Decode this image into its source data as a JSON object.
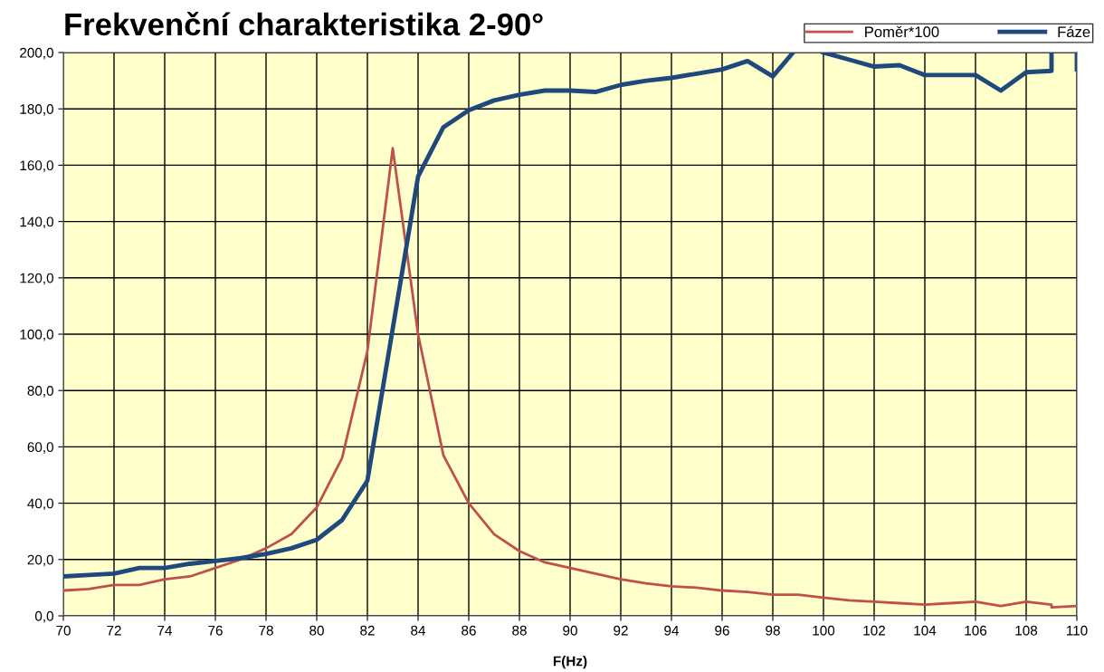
{
  "chart_data": {
    "type": "line",
    "title": "Frekvenční charakteristika 2-90°",
    "xlabel": "F(Hz)",
    "series": [
      {
        "name": "Poměr*100",
        "color": "#c0504d",
        "x": [
          70,
          71,
          72,
          73,
          74,
          75,
          76,
          77,
          78,
          79,
          80,
          81,
          82,
          83,
          84,
          85,
          86,
          87,
          88,
          89,
          90,
          91,
          92,
          93,
          94,
          95,
          96,
          97,
          98,
          99,
          100,
          101,
          102,
          103,
          104,
          105,
          106,
          107,
          108,
          109,
          109,
          110
        ],
        "values": [
          9,
          9.5,
          11,
          11,
          13,
          14,
          17,
          20,
          24,
          29,
          38.5,
          56,
          94,
          166,
          100,
          57,
          40,
          29,
          23,
          19,
          17,
          15,
          13,
          11.5,
          10.5,
          10,
          9,
          8.5,
          7.5,
          7.5,
          6.5,
          5.5,
          5,
          4.5,
          4,
          4.5,
          5,
          3.5,
          5,
          4,
          3,
          3.5
        ]
      },
      {
        "name": "Fáze",
        "color": "#1f497d",
        "x": [
          70,
          71,
          72,
          73,
          74,
          75,
          76,
          77,
          78,
          79,
          80,
          81,
          82,
          83,
          84,
          85,
          86,
          87,
          88,
          89,
          90,
          91,
          92,
          93,
          94,
          95,
          96,
          97,
          98,
          98.8,
          99,
          100,
          101,
          102,
          103,
          104,
          105,
          106,
          107,
          108,
          109,
          109,
          109.5,
          110,
          110
        ],
        "values": [
          14,
          14.5,
          15,
          17,
          17,
          18.5,
          19.5,
          20.5,
          22,
          24,
          27,
          34,
          48,
          102,
          156,
          173.5,
          179.5,
          183,
          185,
          186.5,
          186.5,
          186,
          188.5,
          190,
          191,
          192.5,
          194,
          197,
          191.5,
          200,
          null,
          200,
          197.5,
          195,
          195.5,
          192,
          192,
          192,
          186.5,
          193,
          193.5,
          200,
          null,
          200,
          194
        ]
      }
    ],
    "xlim": [
      70,
      110
    ],
    "xticks": [
      70,
      72,
      74,
      76,
      78,
      80,
      82,
      84,
      86,
      88,
      90,
      92,
      94,
      96,
      98,
      100,
      102,
      104,
      106,
      108,
      110
    ],
    "ylim": [
      0,
      200
    ],
    "yticks": [
      {
        "value": 0,
        "label": "0,0"
      },
      {
        "value": 20,
        "label": "20,0"
      },
      {
        "value": 40,
        "label": "40,0"
      },
      {
        "value": 60,
        "label": "60,0"
      },
      {
        "value": 80,
        "label": "80,0"
      },
      {
        "value": 100,
        "label": "100,0"
      },
      {
        "value": 120,
        "label": "120,0"
      },
      {
        "value": 140,
        "label": "140,0"
      },
      {
        "value": 160,
        "label": "160,0"
      },
      {
        "value": 180,
        "label": "180,0"
      },
      {
        "value": 200,
        "label": "200,0"
      }
    ],
    "grid": true,
    "legend": "top right",
    "marker": "none",
    "line_style": "solid"
  }
}
